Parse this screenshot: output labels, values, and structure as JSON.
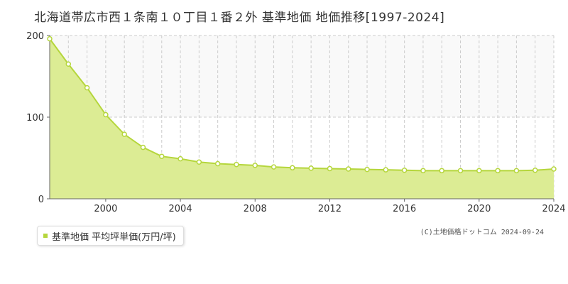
{
  "title": "北海道帯広市西１条南１０丁目１番２外 基準地価 地価推移[1997-2024]",
  "legend": {
    "label": "基準地価 平均坪単価(万円/坪)"
  },
  "copyright": "(C)土地価格ドットコム 2024-09-24",
  "colors": {
    "line": "#b5d63c",
    "fill": "#dcec94",
    "point_fill": "#ffffff",
    "plot_band": "#f9f9f9",
    "grid": "#cccccc",
    "axis": "#666666"
  },
  "chart_data": {
    "type": "area",
    "title": "北海道帯広市西１条南１０丁目１番２外 基準地価 地価推移[1997-2024]",
    "xlabel": "",
    "ylabel": "",
    "x": [
      1997,
      1998,
      1999,
      2000,
      2001,
      2002,
      2003,
      2004,
      2005,
      2006,
      2007,
      2008,
      2009,
      2010,
      2011,
      2012,
      2013,
      2014,
      2015,
      2016,
      2017,
      2018,
      2019,
      2020,
      2021,
      2022,
      2023,
      2024
    ],
    "series": [
      {
        "name": "基準地価 平均坪単価(万円/坪)",
        "values": [
          196,
          165,
          136,
          103,
          79,
          63,
          52,
          49,
          45,
          43,
          42,
          41,
          39,
          38,
          37.5,
          37,
          36.5,
          36,
          35.5,
          35,
          34.5,
          34.5,
          34.5,
          34.5,
          34.5,
          34.5,
          35,
          36.5
        ]
      }
    ],
    "xlim": [
      1997,
      2024
    ],
    "ylim": [
      0,
      200
    ],
    "x_ticks": [
      2000,
      2004,
      2008,
      2012,
      2016,
      2020,
      2024
    ],
    "y_ticks": [
      0,
      100,
      200
    ],
    "grid": true,
    "legend_position": "bottom-left"
  }
}
